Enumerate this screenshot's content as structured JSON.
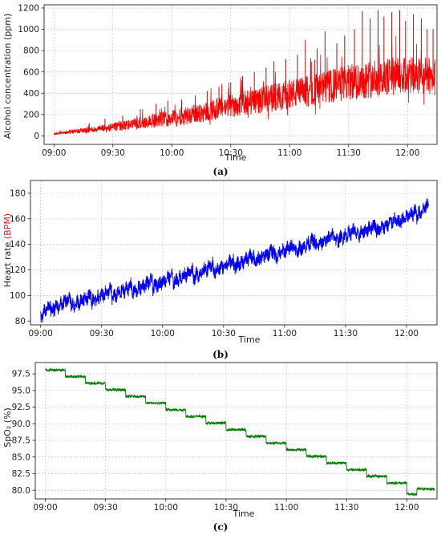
{
  "figure": {
    "panels": [
      "(a)",
      "(b)",
      "(c)"
    ]
  },
  "chart_data": [
    {
      "type": "line",
      "panel_label": "(a)",
      "ylabel": "Alcohol concentration (ppm)",
      "xlabel": "Time",
      "color": "#ff0000",
      "spike_color": "#a01010",
      "xlim": [
        "08:55",
        "12:15"
      ],
      "ylim": [
        -80,
        1230
      ],
      "yticks": [
        0,
        200,
        400,
        600,
        800,
        1000,
        1200
      ],
      "xticks": [
        "09:00",
        "09:30",
        "10:00",
        "10:30",
        "11:00",
        "11:30",
        "12:00"
      ],
      "grid": true,
      "trend_x": [
        "09:00",
        "09:10",
        "09:20",
        "09:30",
        "09:40",
        "09:50",
        "10:00",
        "10:10",
        "10:20",
        "10:30",
        "10:40",
        "10:50",
        "11:00",
        "11:10",
        "11:20",
        "11:30",
        "11:40",
        "11:50",
        "12:00",
        "12:10",
        "12:14"
      ],
      "trend_y": [
        20,
        40,
        60,
        80,
        110,
        140,
        170,
        200,
        240,
        280,
        320,
        350,
        390,
        420,
        460,
        500,
        530,
        550,
        560,
        560,
        560
      ],
      "band_half_width": [
        10,
        20,
        30,
        40,
        55,
        65,
        80,
        90,
        100,
        110,
        120,
        130,
        140,
        150,
        160,
        170,
        180,
        180,
        180,
        180,
        180
      ],
      "spikes": [
        {
          "x": "09:18",
          "y": 120
        },
        {
          "x": "09:26",
          "y": 160
        },
        {
          "x": "09:35",
          "y": 190
        },
        {
          "x": "09:44",
          "y": 250
        },
        {
          "x": "09:52",
          "y": 300
        },
        {
          "x": "09:58",
          "y": 330
        },
        {
          "x": "10:05",
          "y": 340
        },
        {
          "x": "10:12",
          "y": 380
        },
        {
          "x": "10:18",
          "y": 420
        },
        {
          "x": "10:24",
          "y": 460
        },
        {
          "x": "10:30",
          "y": 500
        },
        {
          "x": "10:36",
          "y": 560
        },
        {
          "x": "10:42",
          "y": 600
        },
        {
          "x": "10:48",
          "y": 640
        },
        {
          "x": "10:52",
          "y": 700
        },
        {
          "x": "10:58",
          "y": 720
        },
        {
          "x": "11:04",
          "y": 760
        },
        {
          "x": "11:08",
          "y": 900
        },
        {
          "x": "11:14",
          "y": 820
        },
        {
          "x": "11:18",
          "y": 980
        },
        {
          "x": "11:24",
          "y": 870
        },
        {
          "x": "11:28",
          "y": 940
        },
        {
          "x": "11:33",
          "y": 1000
        },
        {
          "x": "11:37",
          "y": 1170
        },
        {
          "x": "11:41",
          "y": 1100
        },
        {
          "x": "11:45",
          "y": 1180
        },
        {
          "x": "11:48",
          "y": 1120
        },
        {
          "x": "11:52",
          "y": 1160
        },
        {
          "x": "11:56",
          "y": 1180
        },
        {
          "x": "11:59",
          "y": 1080
        },
        {
          "x": "12:03",
          "y": 1140
        },
        {
          "x": "12:07",
          "y": 1100
        },
        {
          "x": "12:10",
          "y": 1000
        },
        {
          "x": "12:13",
          "y": 1000
        }
      ]
    },
    {
      "type": "line",
      "panel_label": "(b)",
      "ylabel_parts": [
        "Heart rate ",
        "(BPM)"
      ],
      "ylabel_highlight_color": "#c81e1e",
      "xlabel": "Time",
      "color": "#0000ff",
      "xlim": [
        "08:55",
        "12:15"
      ],
      "ylim": [
        77,
        190
      ],
      "yticks": [
        80,
        100,
        120,
        140,
        160,
        180
      ],
      "xticks": [
        "09:00",
        "09:30",
        "10:00",
        "10:30",
        "11:00",
        "11:30",
        "12:00"
      ],
      "grid": true,
      "segments": [
        {
          "start": "09:00",
          "end": "09:05",
          "base": 83
        },
        {
          "start": "09:05",
          "end": "09:15",
          "base": 88
        },
        {
          "start": "09:15",
          "end": "09:25",
          "base": 91
        },
        {
          "start": "09:25",
          "end": "09:35",
          "base": 95
        },
        {
          "start": "09:35",
          "end": "09:45",
          "base": 98
        },
        {
          "start": "09:45",
          "end": "09:55",
          "base": 102
        },
        {
          "start": "09:55",
          "end": "10:05",
          "base": 106
        },
        {
          "start": "10:05",
          "end": "10:15",
          "base": 110
        },
        {
          "start": "10:15",
          "end": "10:25",
          "base": 114
        },
        {
          "start": "10:25",
          "end": "10:35",
          "base": 118
        },
        {
          "start": "10:35",
          "end": "10:45",
          "base": 122
        },
        {
          "start": "10:45",
          "end": "10:55",
          "base": 126
        },
        {
          "start": "10:55",
          "end": "11:05",
          "base": 130
        },
        {
          "start": "11:05",
          "end": "11:15",
          "base": 134
        },
        {
          "start": "11:15",
          "end": "11:25",
          "base": 138
        },
        {
          "start": "11:25",
          "end": "11:35",
          "base": 142
        },
        {
          "start": "11:35",
          "end": "11:45",
          "base": 146
        },
        {
          "start": "11:45",
          "end": "11:55",
          "base": 150
        },
        {
          "start": "11:55",
          "end": "12:05",
          "base": 156
        },
        {
          "start": "12:05",
          "end": "12:11",
          "base": 162
        }
      ],
      "amplitude": 10
    },
    {
      "type": "line",
      "panel_label": "(c)",
      "ylabel": "SpO₂ (%)",
      "xlabel": "Time",
      "color": "#007a00",
      "xlim": [
        "08:55",
        "12:15"
      ],
      "ylim": [
        78.7,
        99.2
      ],
      "yticks": [
        80.0,
        82.5,
        85.0,
        87.5,
        90.0,
        92.5,
        95.0,
        97.5
      ],
      "xticks": [
        "09:00",
        "09:30",
        "10:00",
        "10:30",
        "11:00",
        "11:30",
        "12:00"
      ],
      "grid": true,
      "steps": [
        {
          "start": "09:00",
          "end": "09:10",
          "value": 98.1
        },
        {
          "start": "09:10",
          "end": "09:20",
          "value": 97.1
        },
        {
          "start": "09:20",
          "end": "09:30",
          "value": 96.1
        },
        {
          "start": "09:30",
          "end": "09:40",
          "value": 95.1
        },
        {
          "start": "09:40",
          "end": "09:50",
          "value": 94.1
        },
        {
          "start": "09:50",
          "end": "10:00",
          "value": 93.1
        },
        {
          "start": "10:00",
          "end": "10:10",
          "value": 92.1
        },
        {
          "start": "10:10",
          "end": "10:20",
          "value": 91.1
        },
        {
          "start": "10:20",
          "end": "10:30",
          "value": 90.1
        },
        {
          "start": "10:30",
          "end": "10:40",
          "value": 89.1
        },
        {
          "start": "10:40",
          "end": "10:50",
          "value": 88.1
        },
        {
          "start": "10:50",
          "end": "11:00",
          "value": 87.1
        },
        {
          "start": "11:00",
          "end": "11:10",
          "value": 86.1
        },
        {
          "start": "11:10",
          "end": "11:20",
          "value": 85.1
        },
        {
          "start": "11:20",
          "end": "11:30",
          "value": 84.1
        },
        {
          "start": "11:30",
          "end": "11:40",
          "value": 83.1
        },
        {
          "start": "11:40",
          "end": "11:50",
          "value": 82.1
        },
        {
          "start": "11:50",
          "end": "12:00",
          "value": 81.1
        },
        {
          "start": "12:00",
          "end": "12:05",
          "value": 79.4
        },
        {
          "start": "12:05",
          "end": "12:14",
          "value": 80.2
        }
      ]
    }
  ]
}
